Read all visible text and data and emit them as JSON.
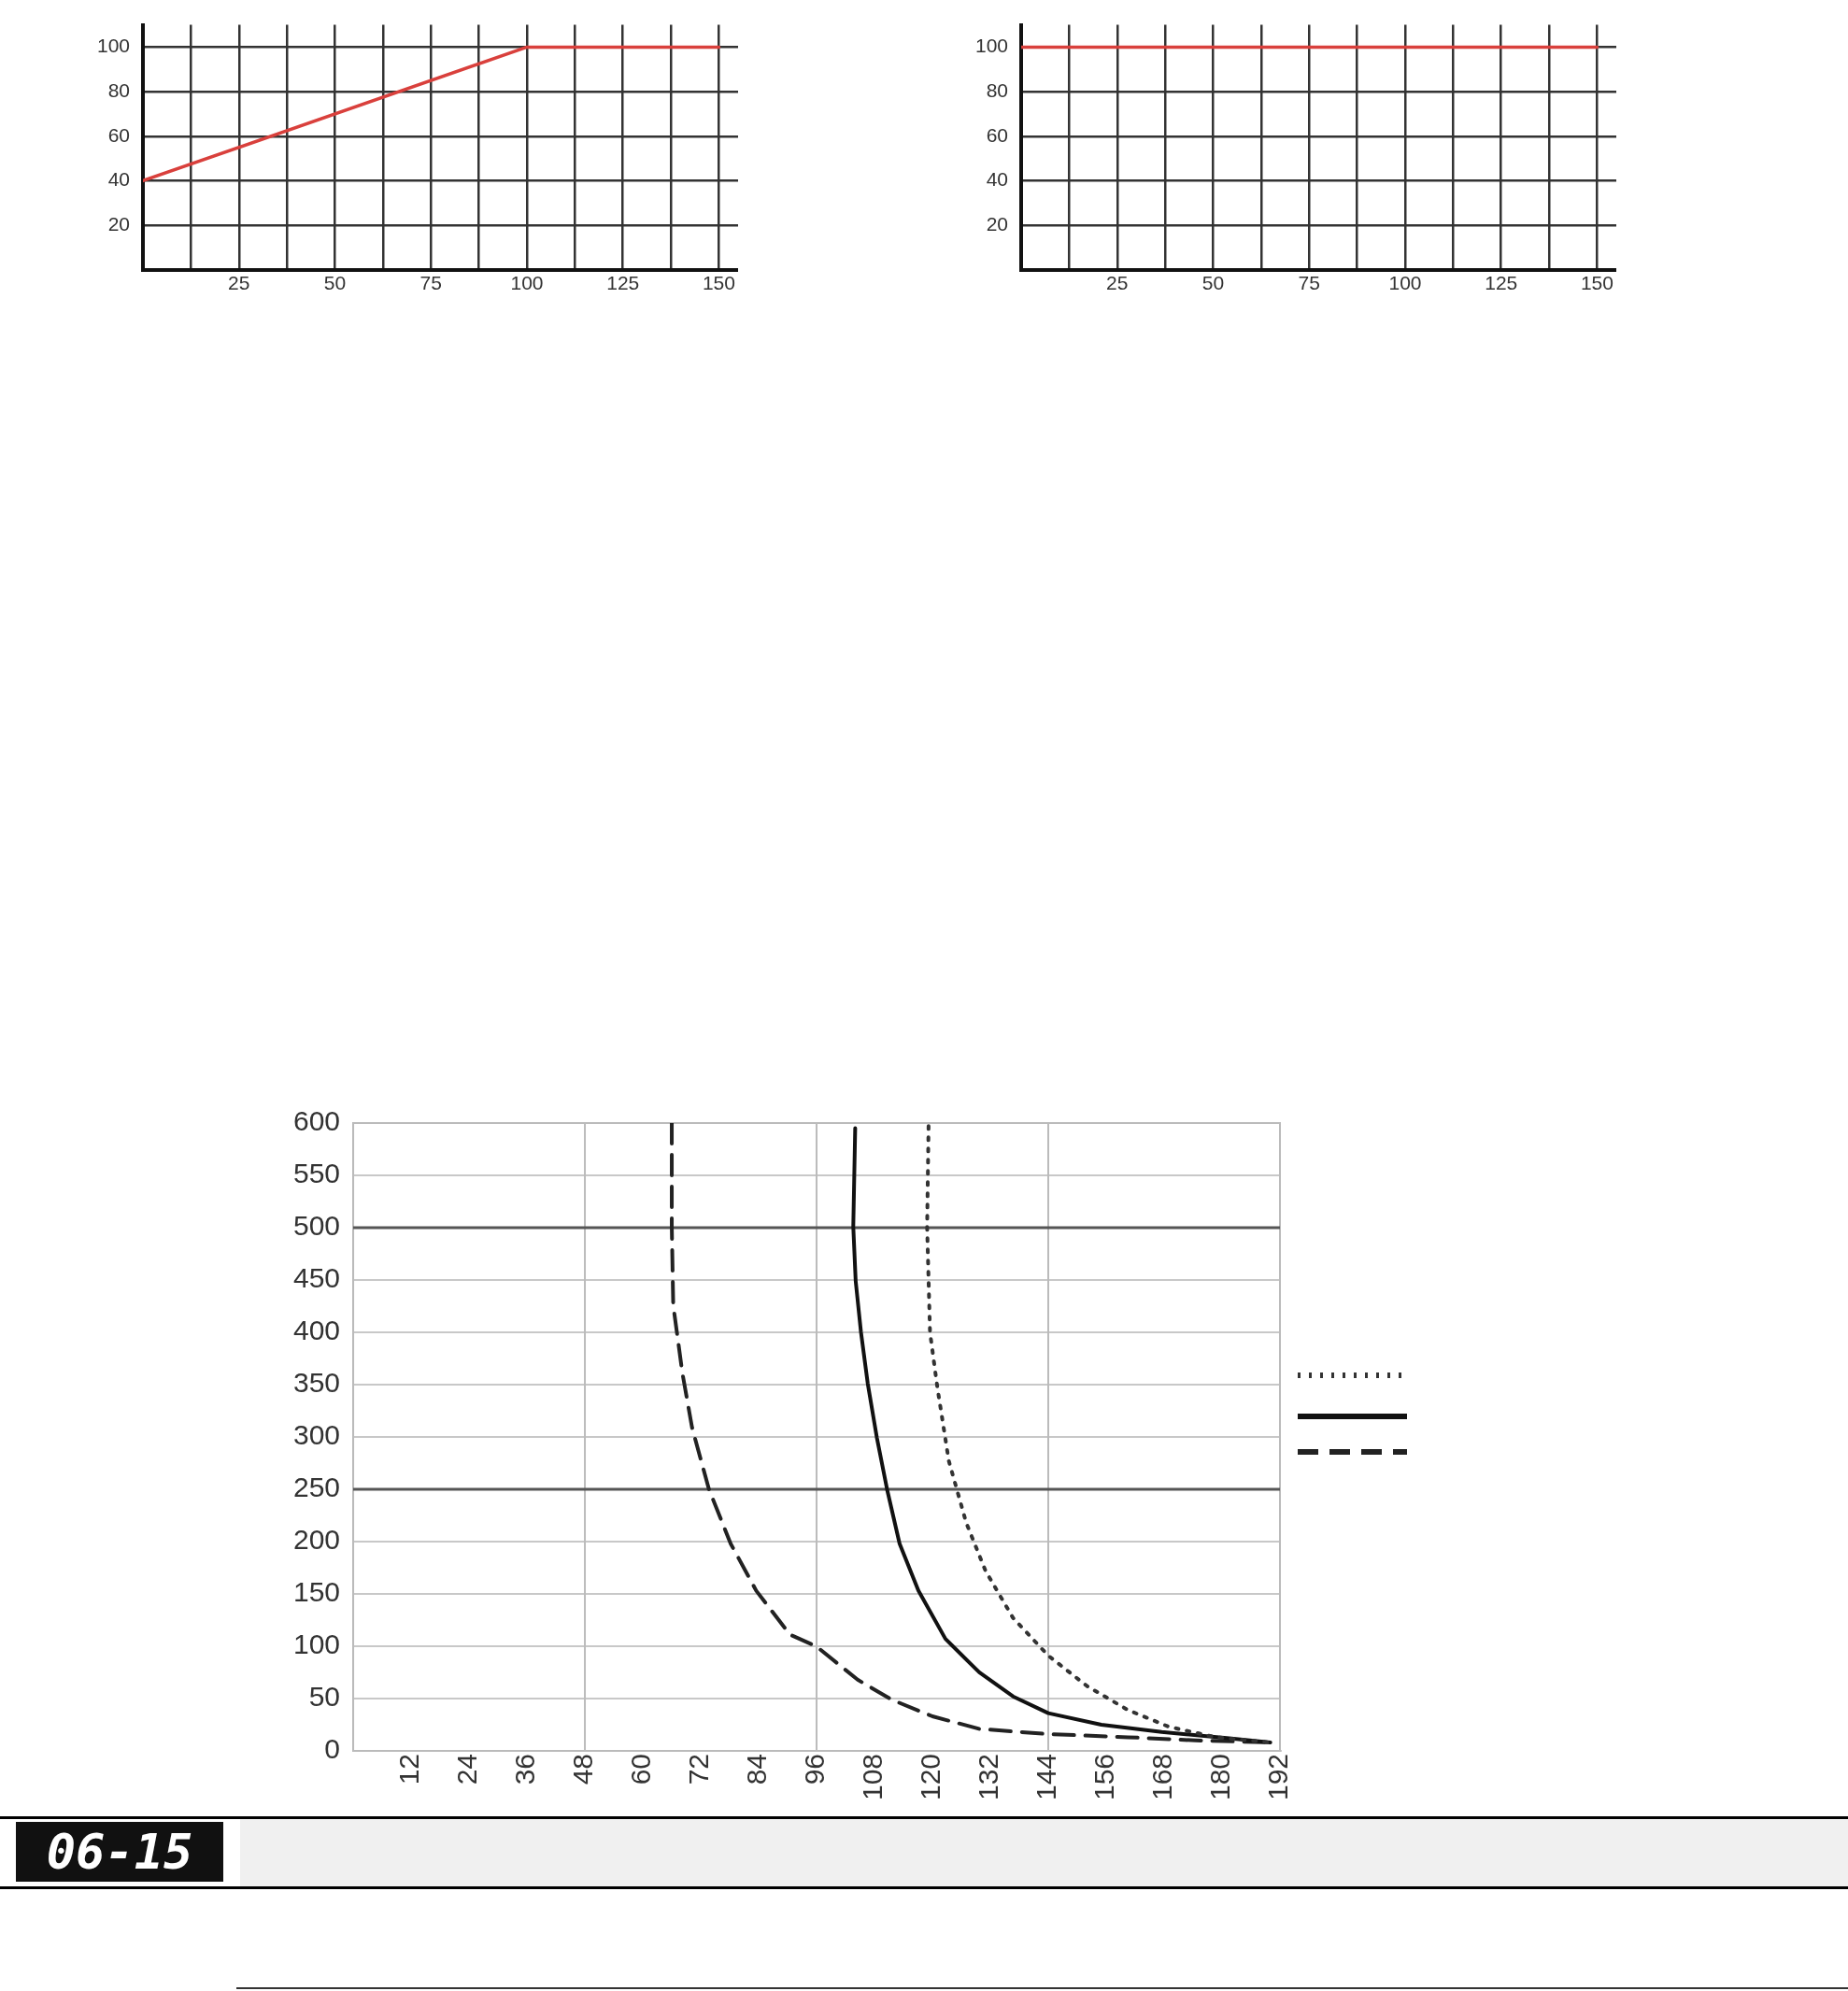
{
  "chart_data": [
    {
      "type": "line",
      "x": [
        0,
        100,
        150
      ],
      "series": [
        {
          "color": "#d9403c",
          "values": [
            40,
            100,
            100
          ]
        }
      ],
      "xlim": [
        0,
        155
      ],
      "ylim": [
        0,
        110
      ],
      "xticks": [
        {
          "value": 12.5,
          "label": null
        },
        25,
        {
          "value": 37.5,
          "label": null
        },
        50,
        {
          "value": 62.5,
          "label": null
        },
        75,
        {
          "value": 87.5,
          "label": null
        },
        100,
        {
          "value": 112.5,
          "label": null
        },
        125,
        {
          "value": 137.5,
          "label": null
        },
        150
      ],
      "yticks": [
        20,
        40,
        60,
        80,
        100
      ],
      "grid": true,
      "marker": "none"
    },
    {
      "type": "line",
      "x": [
        0,
        150
      ],
      "series": [
        {
          "color": "#d9403c",
          "values": [
            100,
            100
          ]
        }
      ],
      "xlim": [
        0,
        155
      ],
      "ylim": [
        0,
        110
      ],
      "xticks": [
        {
          "value": 12.5,
          "label": null
        },
        25,
        {
          "value": 37.5,
          "label": null
        },
        50,
        {
          "value": 62.5,
          "label": null
        },
        75,
        {
          "value": 87.5,
          "label": null
        },
        100,
        {
          "value": 112.5,
          "label": null
        },
        125,
        {
          "value": 137.5,
          "label": null
        },
        150
      ],
      "yticks": [
        20,
        40,
        60,
        80,
        100
      ],
      "grid": true,
      "marker": "none"
    },
    {
      "type": "line",
      "marker": "none",
      "grid": "y",
      "xlim": [
        0,
        192
      ],
      "ylim": [
        0,
        600
      ],
      "xticks": [
        12,
        24,
        36,
        48,
        60,
        72,
        84,
        96,
        108,
        120,
        132,
        144,
        156,
        168,
        180,
        192
      ],
      "yticks": [
        0,
        50,
        100,
        150,
        200,
        250,
        300,
        350,
        400,
        450,
        500,
        550,
        600
      ],
      "series": [
        {
          "color": "#333333",
          "line_style": "dotted",
          "x": [
            119.2,
            118.9,
            119.5,
            121,
            123.4,
            127,
            131,
            136.7,
            144,
            152,
            160.5,
            169,
            178.7,
            190
          ],
          "values": [
            597,
            501,
            400,
            348,
            277,
            218,
            172,
            127,
            91,
            62,
            39,
            23,
            13,
            8
          ]
        },
        {
          "color": "#111111",
          "line_style": "solid",
          "x": [
            104,
            103.6,
            104.1,
            105.2,
            106.6,
            108.5,
            110.6,
            113.2,
            117.1,
            122.7,
            129.7,
            136.7,
            144,
            155,
            167.5,
            181.5,
            190
          ],
          "values": [
            595,
            501,
            449,
            400,
            351,
            299,
            250,
            198,
            153,
            107,
            75,
            52,
            36,
            25,
            18,
            12,
            8
          ]
        },
        {
          "color": "#555555",
          "line_style": "solid",
          "x": [
            0,
            192
          ],
          "values": [
            250,
            250
          ]
        },
        {
          "color": "#555555",
          "line_style": "solid",
          "x": [
            0,
            192
          ],
          "values": [
            500,
            500
          ]
        },
        {
          "color": "#222222",
          "line_style": "dashed",
          "x": [
            66,
            66,
            66.3,
            68.2,
            70.2,
            73.7,
            78.2,
            83.5,
            90.5,
            95.9,
            104.5,
            111.5,
            120,
            129.7,
            144,
            160.5,
            174.5,
            190
          ],
          "values": [
            600,
            501,
            426,
            361,
            309,
            250,
            198,
            153,
            111,
            100,
            68,
            49,
            33,
            21,
            16,
            13,
            10,
            8
          ]
        }
      ],
      "ref_lines": [
        {
          "axis": "x",
          "value": 48,
          "color": "#bbbbbb"
        },
        {
          "axis": "x",
          "value": 96,
          "color": "#bbbbbb"
        },
        {
          "axis": "x",
          "value": 144,
          "color": "#bbbbbb"
        }
      ],
      "annotations": [
        "06-15"
      ]
    }
  ]
}
